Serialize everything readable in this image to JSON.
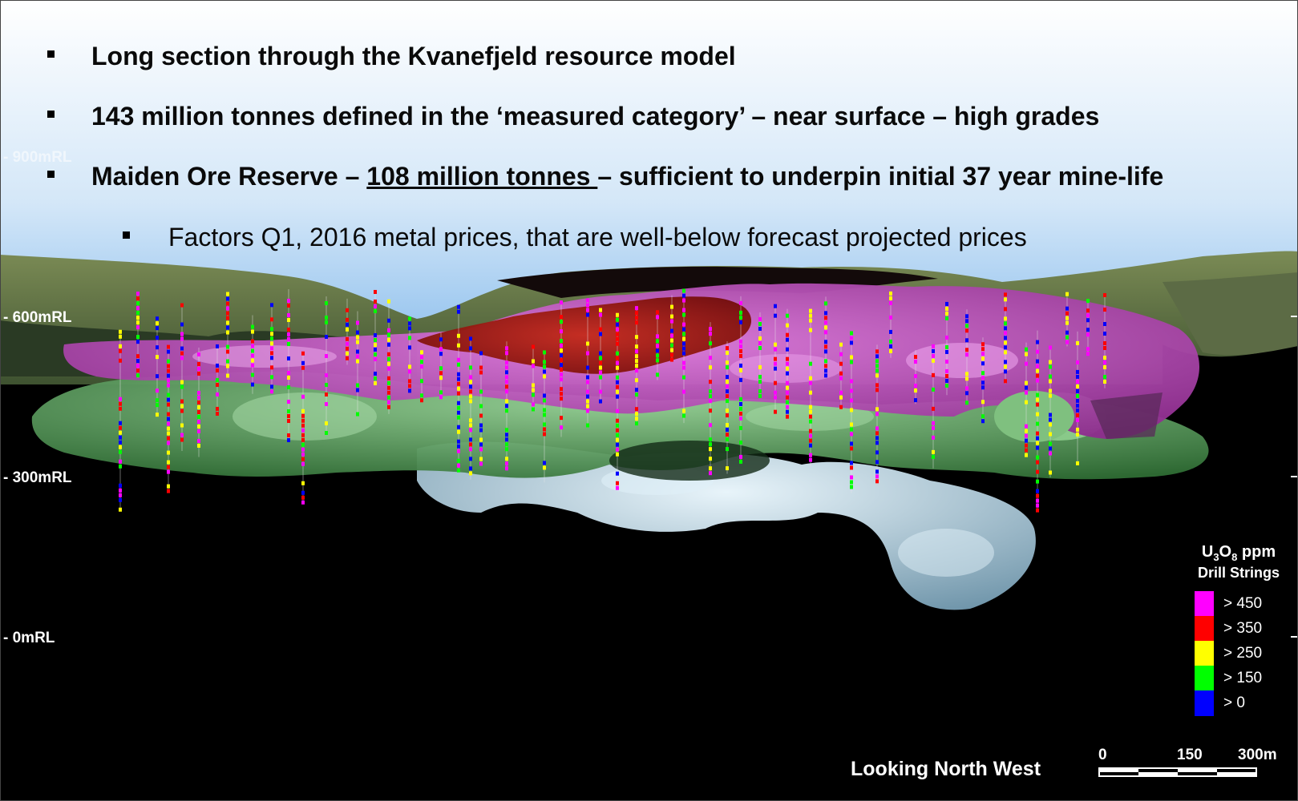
{
  "bullets": [
    {
      "text": "Long section through the Kvanefjeld resource model"
    },
    {
      "text": "143 million tonnes defined in the ‘measured category’ – near surface – high grades"
    },
    {
      "text_before": "Maiden Ore Reserve – ",
      "text_underlined": "108 million tonnes ",
      "text_after": "– sufficient to underpin initial 37 year mine-life"
    },
    {
      "text": "Factors Q1, 2016 metal prices, that are well-below forecast projected prices"
    }
  ],
  "elevation_labels": [
    "900mRL",
    "600mRL",
    "300mRL",
    "0mRL"
  ],
  "legend": {
    "title_base": "U",
    "title_sub1": "3",
    "title_mid": "O",
    "title_sub2": "8",
    "title_unit": " ppm",
    "subtitle": "Drill Strings",
    "entries": [
      {
        "label": "> 450",
        "color": "#ff00ff"
      },
      {
        "label": "> 350",
        "color": "#ff0000"
      },
      {
        "label": "> 250",
        "color": "#ffff00"
      },
      {
        "label": "> 150",
        "color": "#00ff00"
      },
      {
        "label": "> 0",
        "color": "#0000ff"
      }
    ]
  },
  "view_label": "Looking North West",
  "scale_bar": {
    "labels": [
      "0",
      "150",
      "300m"
    ]
  },
  "colors": {
    "sky_top": "#ffffff",
    "sky_bottom": "#8fc1ee",
    "terrain": "#5e7540",
    "magenta_zone": "#c64bc6",
    "red_zone": "#a3120c",
    "green_zone": "#4f9a4f",
    "blue_zone": "#8fb0c4",
    "background": "#000000"
  }
}
